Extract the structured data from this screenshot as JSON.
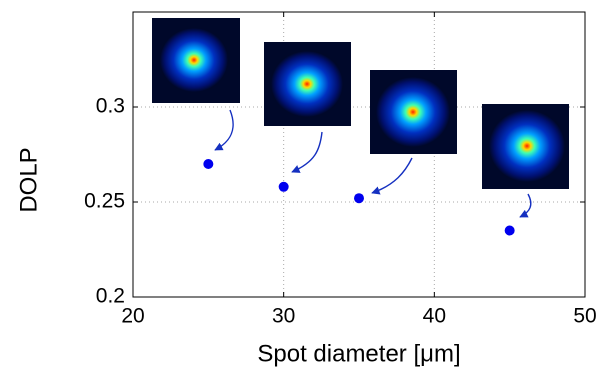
{
  "chart_data": {
    "type": "scatter",
    "x": [
      25,
      30,
      35,
      45
    ],
    "values": [
      0.27,
      0.258,
      0.252,
      0.235
    ],
    "color": "#0000ee",
    "xlabel": "Spot diameter [μm]",
    "ylabel": "DOLP",
    "xlim": [
      20,
      50
    ],
    "xticks": [
      20,
      30,
      40,
      50
    ],
    "ylim": [
      0.2,
      0.35
    ],
    "yticks": [
      0.2,
      0.25,
      0.3
    ],
    "grid": true
  }
}
